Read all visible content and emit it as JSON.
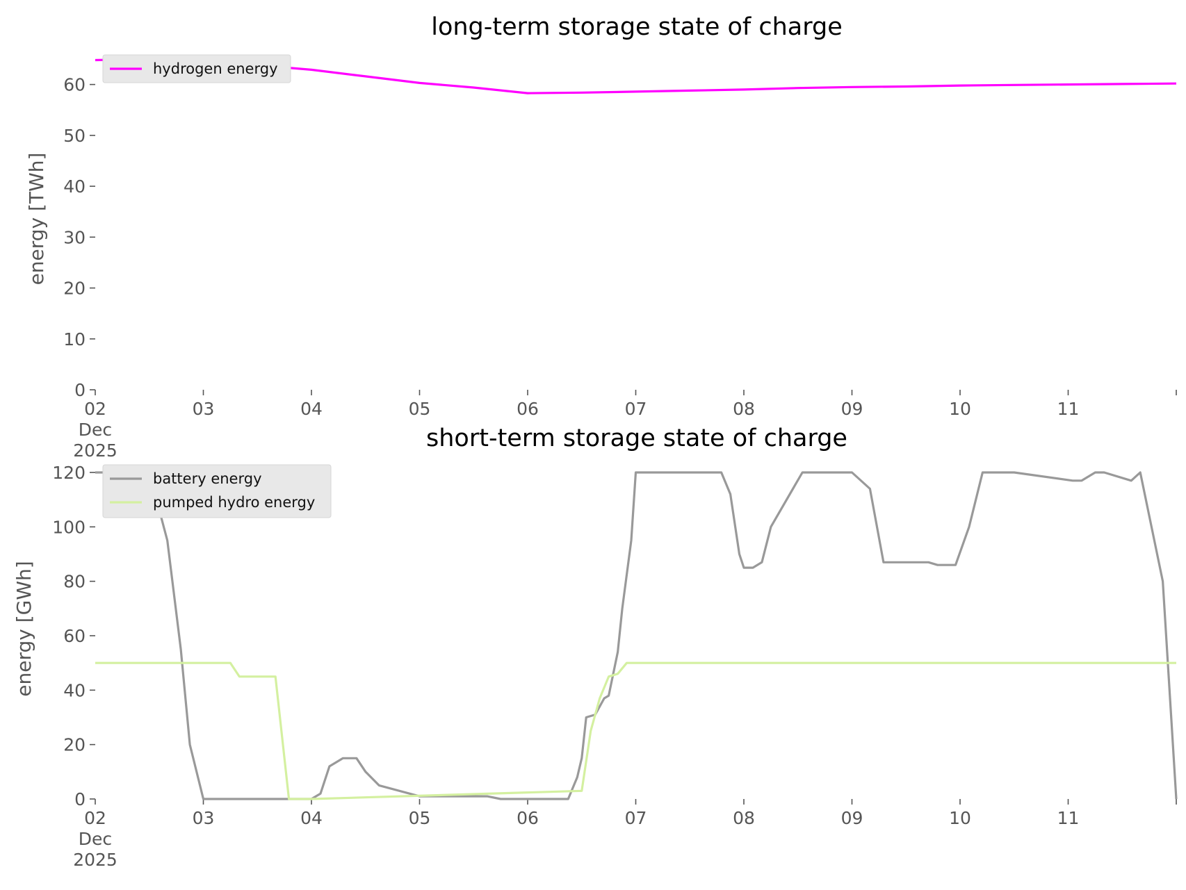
{
  "chart_data": [
    {
      "type": "line",
      "title": "long-term storage state of charge",
      "ylabel": "energy [TWh]",
      "xlabel": "",
      "ylim": [
        0,
        65
      ],
      "yticks": [
        0,
        10,
        20,
        30,
        40,
        50,
        60
      ],
      "xlim": [
        "2025-12-02",
        "2025-12-12"
      ],
      "xticks": [
        "2025-12-02",
        "2025-12-03",
        "2025-12-04",
        "2025-12-05",
        "2025-12-06",
        "2025-12-07",
        "2025-12-08",
        "2025-12-09",
        "2025-12-10",
        "2025-12-11"
      ],
      "xtick_labels": [
        "02\nDec\n2025",
        "03",
        "04",
        "05",
        "06",
        "07",
        "08",
        "09",
        "10",
        "11"
      ],
      "grid": false,
      "legend": "top-left",
      "series": [
        {
          "name": "hydrogen energy",
          "color": "#ff00ff",
          "x": [
            "2025-12-02T00:00",
            "2025-12-02T12:00",
            "2025-12-03T00:00",
            "2025-12-03T12:00",
            "2025-12-04T00:00",
            "2025-12-04T12:00",
            "2025-12-05T00:00",
            "2025-12-05T12:00",
            "2025-12-06T00:00",
            "2025-12-06T12:00",
            "2025-12-07T00:00",
            "2025-12-07T12:00",
            "2025-12-08T00:00",
            "2025-12-08T12:00",
            "2025-12-09T00:00",
            "2025-12-09T12:00",
            "2025-12-10T00:00",
            "2025-12-10T12:00",
            "2025-12-11T00:00",
            "2025-12-11T12:00",
            "2025-12-12T00:00"
          ],
          "y": [
            64.8,
            65.0,
            64.7,
            63.8,
            62.9,
            61.6,
            60.3,
            59.4,
            58.3,
            58.4,
            58.6,
            58.8,
            59.0,
            59.3,
            59.5,
            59.6,
            59.8,
            59.9,
            60.0,
            60.1,
            60.2
          ]
        }
      ]
    },
    {
      "type": "line",
      "title": "short-term storage state of charge",
      "ylabel": "energy [GWh]",
      "xlabel": "",
      "ylim": [
        0,
        120
      ],
      "yticks": [
        0,
        20,
        40,
        60,
        80,
        100,
        120
      ],
      "xlim": [
        "2025-12-02",
        "2025-12-12"
      ],
      "xticks": [
        "2025-12-02",
        "2025-12-03",
        "2025-12-04",
        "2025-12-05",
        "2025-12-06",
        "2025-12-07",
        "2025-12-08",
        "2025-12-09",
        "2025-12-10",
        "2025-12-11"
      ],
      "xtick_labels": [
        "02\nDec\n2025",
        "03",
        "04",
        "05",
        "06",
        "07",
        "08",
        "09",
        "10",
        "11"
      ],
      "grid": false,
      "legend": "top-left",
      "series": [
        {
          "name": "battery energy",
          "color": "#999999",
          "x": [
            "2025-12-02T00:00",
            "2025-12-02T12:00",
            "2025-12-02T16:00",
            "2025-12-02T19:00",
            "2025-12-02T21:00",
            "2025-12-03T00:00",
            "2025-12-04T00:00",
            "2025-12-04T02:00",
            "2025-12-04T04:00",
            "2025-12-04T07:00",
            "2025-12-04T10:00",
            "2025-12-04T12:00",
            "2025-12-04T15:00",
            "2025-12-05T00:00",
            "2025-12-05T03:00",
            "2025-12-05T15:00",
            "2025-12-05T18:00",
            "2025-12-06T00:00",
            "2025-12-06T09:00",
            "2025-12-06T11:00",
            "2025-12-06T12:00",
            "2025-12-06T13:00",
            "2025-12-06T15:00",
            "2025-12-06T17:00",
            "2025-12-06T18:00",
            "2025-12-06T20:00",
            "2025-12-06T21:00",
            "2025-12-06T23:00",
            "2025-12-07T00:00",
            "2025-12-07T04:00",
            "2025-12-07T19:00",
            "2025-12-07T21:00",
            "2025-12-07T23:00",
            "2025-12-08T00:00",
            "2025-12-08T02:00",
            "2025-12-08T04:00",
            "2025-12-08T06:00",
            "2025-12-08T13:00",
            "2025-12-09T00:00",
            "2025-12-09T04:00",
            "2025-12-09T07:00",
            "2025-12-09T17:00",
            "2025-12-09T19:00",
            "2025-12-09T21:00",
            "2025-12-09T23:00",
            "2025-12-10T02:00",
            "2025-12-10T05:00",
            "2025-12-10T07:00",
            "2025-12-10T12:00",
            "2025-12-11T01:00",
            "2025-12-11T03:00",
            "2025-12-11T06:00",
            "2025-12-11T08:00",
            "2025-12-11T14:00",
            "2025-12-11T16:00",
            "2025-12-11T21:00",
            "2025-12-12T00:00"
          ],
          "y": [
            120,
            120,
            95,
            55,
            20,
            0,
            0,
            2,
            12,
            15,
            15,
            10,
            5,
            1,
            1,
            1,
            0,
            0,
            0,
            8,
            15,
            30,
            31,
            37,
            38,
            54,
            70,
            95,
            120,
            120,
            120,
            112,
            90,
            85,
            85,
            87,
            100,
            120,
            120,
            114,
            87,
            87,
            86,
            86,
            86,
            100,
            120,
            120,
            120,
            117,
            117,
            120,
            120,
            117,
            120,
            80,
            0
          ]
        },
        {
          "name": "pumped hydro energy",
          "color": "#d4f0a0",
          "x": [
            "2025-12-02T00:00",
            "2025-12-03T00:00",
            "2025-12-03T06:00",
            "2025-12-03T08:00",
            "2025-12-03T12:00",
            "2025-12-03T16:00",
            "2025-12-03T19:00",
            "2025-12-04T00:00",
            "2025-12-06T12:00",
            "2025-12-06T14:00",
            "2025-12-06T16:00",
            "2025-12-06T18:00",
            "2025-12-06T20:00",
            "2025-12-06T22:00",
            "2025-12-07T00:00",
            "2025-12-12T00:00"
          ],
          "y": [
            50,
            50,
            50,
            45,
            45,
            45,
            0,
            0,
            3,
            25,
            37,
            45,
            46,
            50,
            50,
            50
          ]
        }
      ]
    }
  ]
}
